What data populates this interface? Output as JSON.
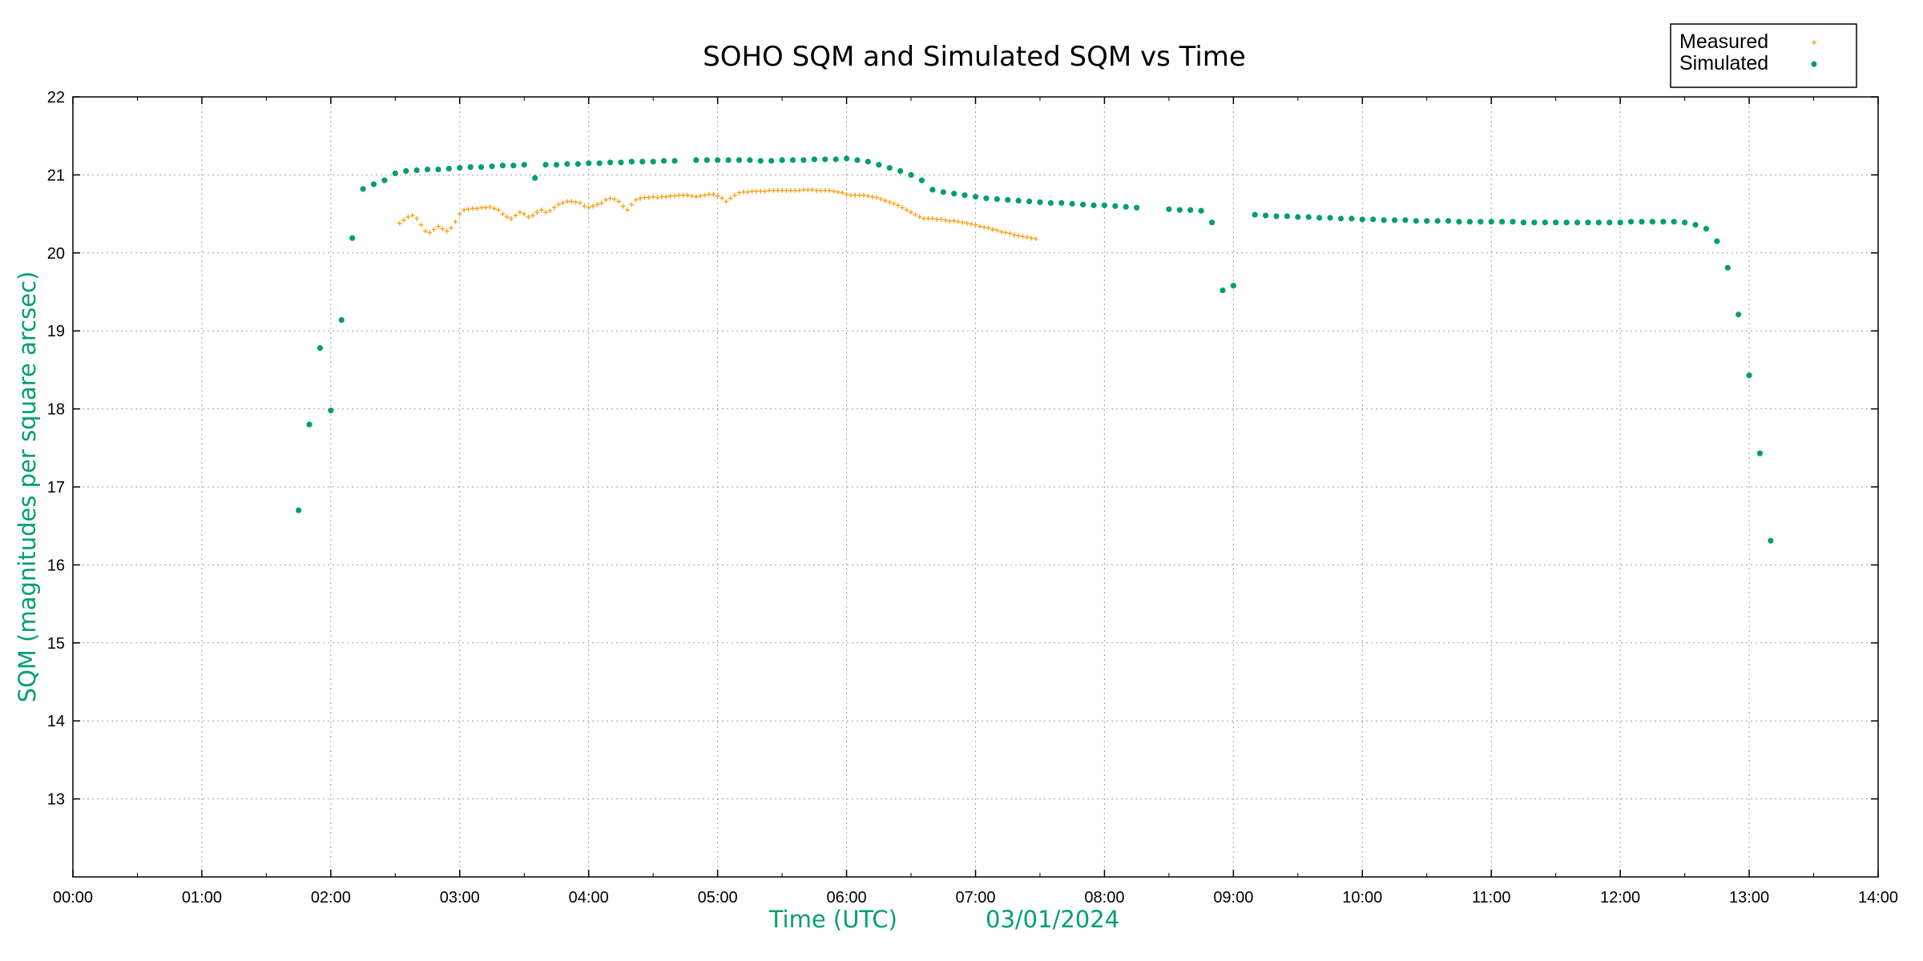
{
  "chart_data": {
    "type": "scatter",
    "title": "SOHO SQM and Simulated SQM vs Time",
    "xlabel": "Time (UTC)",
    "xlabel_date": "03/01/2024",
    "ylabel": "SQM (magnitudes per square arcsec)",
    "xlim": [
      "00:00",
      "14:00"
    ],
    "ylim": [
      12,
      22
    ],
    "x_ticks": [
      "00:00",
      "01:00",
      "02:00",
      "03:00",
      "04:00",
      "05:00",
      "06:00",
      "07:00",
      "08:00",
      "09:00",
      "10:00",
      "11:00",
      "12:00",
      "13:00",
      "14:00"
    ],
    "y_ticks": [
      "13",
      "14",
      "15",
      "16",
      "17",
      "18",
      "19",
      "20",
      "21",
      "22"
    ],
    "grid": true,
    "legend_position": "top-right",
    "label_color": "#009e73",
    "series": [
      {
        "name": "Measured",
        "color": "#f5a623",
        "marker": "plus",
        "points": [
          [
            "02:32",
            20.38
          ],
          [
            "02:34",
            20.42
          ],
          [
            "02:36",
            20.46
          ],
          [
            "02:38",
            20.48
          ],
          [
            "02:40",
            20.44
          ],
          [
            "02:42",
            20.36
          ],
          [
            "02:44",
            20.28
          ],
          [
            "02:46",
            20.26
          ],
          [
            "02:48",
            20.3
          ],
          [
            "02:50",
            20.34
          ],
          [
            "02:52",
            20.31
          ],
          [
            "02:54",
            20.28
          ],
          [
            "02:56",
            20.32
          ],
          [
            "02:58",
            20.4
          ],
          [
            "03:00",
            20.5
          ],
          [
            "03:02",
            20.55
          ],
          [
            "03:04",
            20.56
          ],
          [
            "03:06",
            20.57
          ],
          [
            "03:08",
            20.57
          ],
          [
            "03:10",
            20.58
          ],
          [
            "03:12",
            20.58
          ],
          [
            "03:14",
            20.59
          ],
          [
            "03:16",
            20.57
          ],
          [
            "03:18",
            20.55
          ],
          [
            "03:20",
            20.5
          ],
          [
            "03:22",
            20.46
          ],
          [
            "03:24",
            20.44
          ],
          [
            "03:26",
            20.48
          ],
          [
            "03:28",
            20.52
          ],
          [
            "03:30",
            20.5
          ],
          [
            "03:32",
            20.46
          ],
          [
            "03:34",
            20.48
          ],
          [
            "03:36",
            20.52
          ],
          [
            "03:38",
            20.55
          ],
          [
            "03:40",
            20.52
          ],
          [
            "03:42",
            20.54
          ],
          [
            "03:44",
            20.58
          ],
          [
            "03:46",
            20.62
          ],
          [
            "03:48",
            20.64
          ],
          [
            "03:50",
            20.66
          ],
          [
            "03:52",
            20.66
          ],
          [
            "03:54",
            20.65
          ],
          [
            "03:56",
            20.64
          ],
          [
            "03:58",
            20.6
          ],
          [
            "04:00",
            20.58
          ],
          [
            "04:02",
            20.6
          ],
          [
            "04:04",
            20.62
          ],
          [
            "04:06",
            20.64
          ],
          [
            "04:08",
            20.68
          ],
          [
            "04:10",
            20.7
          ],
          [
            "04:12",
            20.69
          ],
          [
            "04:14",
            20.66
          ],
          [
            "04:16",
            20.6
          ],
          [
            "04:18",
            20.55
          ],
          [
            "04:20",
            20.62
          ],
          [
            "04:22",
            20.68
          ],
          [
            "04:24",
            20.7
          ],
          [
            "04:26",
            20.71
          ],
          [
            "04:28",
            20.71
          ],
          [
            "04:30",
            20.72
          ],
          [
            "04:32",
            20.71
          ],
          [
            "04:34",
            20.72
          ],
          [
            "04:36",
            20.72
          ],
          [
            "04:38",
            20.73
          ],
          [
            "04:40",
            20.73
          ],
          [
            "04:42",
            20.74
          ],
          [
            "04:44",
            20.74
          ],
          [
            "04:46",
            20.74
          ],
          [
            "04:48",
            20.73
          ],
          [
            "04:50",
            20.72
          ],
          [
            "04:52",
            20.73
          ],
          [
            "04:54",
            20.74
          ],
          [
            "04:56",
            20.75
          ],
          [
            "04:58",
            20.75
          ],
          [
            "05:00",
            20.73
          ],
          [
            "05:02",
            20.7
          ],
          [
            "05:04",
            20.66
          ],
          [
            "05:06",
            20.7
          ],
          [
            "05:08",
            20.74
          ],
          [
            "05:10",
            20.77
          ],
          [
            "05:12",
            20.78
          ],
          [
            "05:14",
            20.78
          ],
          [
            "05:16",
            20.79
          ],
          [
            "05:18",
            20.79
          ],
          [
            "05:20",
            20.79
          ],
          [
            "05:22",
            20.79
          ],
          [
            "05:24",
            20.8
          ],
          [
            "05:26",
            20.8
          ],
          [
            "05:28",
            20.8
          ],
          [
            "05:30",
            20.8
          ],
          [
            "05:32",
            20.8
          ],
          [
            "05:34",
            20.8
          ],
          [
            "05:36",
            20.8
          ],
          [
            "05:38",
            20.8
          ],
          [
            "05:40",
            20.81
          ],
          [
            "05:42",
            20.81
          ],
          [
            "05:44",
            20.81
          ],
          [
            "05:46",
            20.8
          ],
          [
            "05:48",
            20.8
          ],
          [
            "05:50",
            20.8
          ],
          [
            "05:52",
            20.8
          ],
          [
            "05:54",
            20.79
          ],
          [
            "05:56",
            20.78
          ],
          [
            "05:58",
            20.77
          ],
          [
            "06:00",
            20.75
          ],
          [
            "06:02",
            20.74
          ],
          [
            "06:04",
            20.74
          ],
          [
            "06:06",
            20.74
          ],
          [
            "06:08",
            20.74
          ],
          [
            "06:10",
            20.73
          ],
          [
            "06:12",
            20.72
          ],
          [
            "06:14",
            20.71
          ],
          [
            "06:16",
            20.69
          ],
          [
            "06:18",
            20.67
          ],
          [
            "06:20",
            20.65
          ],
          [
            "06:22",
            20.63
          ],
          [
            "06:24",
            20.61
          ],
          [
            "06:26",
            20.58
          ],
          [
            "06:28",
            20.55
          ],
          [
            "06:30",
            20.52
          ],
          [
            "06:32",
            20.49
          ],
          [
            "06:34",
            20.46
          ],
          [
            "06:36",
            20.44
          ],
          [
            "06:38",
            20.44
          ],
          [
            "06:40",
            20.44
          ],
          [
            "06:42",
            20.43
          ],
          [
            "06:44",
            20.43
          ],
          [
            "06:46",
            20.42
          ],
          [
            "06:48",
            20.41
          ],
          [
            "06:50",
            20.41
          ],
          [
            "06:52",
            20.4
          ],
          [
            "06:54",
            20.39
          ],
          [
            "06:56",
            20.38
          ],
          [
            "06:58",
            20.37
          ],
          [
            "07:00",
            20.36
          ],
          [
            "07:02",
            20.34
          ],
          [
            "07:04",
            20.33
          ],
          [
            "07:06",
            20.32
          ],
          [
            "07:08",
            20.3
          ],
          [
            "07:10",
            20.29
          ],
          [
            "07:12",
            20.27
          ],
          [
            "07:14",
            20.26
          ],
          [
            "07:16",
            20.25
          ],
          [
            "07:18",
            20.23
          ],
          [
            "07:20",
            20.22
          ],
          [
            "07:22",
            20.21
          ],
          [
            "07:24",
            20.2
          ],
          [
            "07:26",
            20.19
          ],
          [
            "07:28",
            20.18
          ]
        ]
      },
      {
        "name": "Simulated",
        "color": "#009e73",
        "marker": "dot",
        "points": [
          [
            "01:45",
            16.7
          ],
          [
            "01:50",
            17.8
          ],
          [
            "01:55",
            18.78
          ],
          [
            "02:00",
            17.98
          ],
          [
            "02:05",
            19.14
          ],
          [
            "02:10",
            20.19
          ],
          [
            "02:15",
            20.82
          ],
          [
            "02:20",
            20.88
          ],
          [
            "02:25",
            20.93
          ],
          [
            "02:30",
            21.02
          ],
          [
            "02:35",
            21.05
          ],
          [
            "02:40",
            21.06
          ],
          [
            "02:45",
            21.07
          ],
          [
            "02:50",
            21.07
          ],
          [
            "02:55",
            21.08
          ],
          [
            "03:00",
            21.09
          ],
          [
            "03:05",
            21.1
          ],
          [
            "03:10",
            21.1
          ],
          [
            "03:15",
            21.11
          ],
          [
            "03:20",
            21.12
          ],
          [
            "03:25",
            21.12
          ],
          [
            "03:30",
            21.13
          ],
          [
            "03:35",
            20.96
          ],
          [
            "03:40",
            21.13
          ],
          [
            "03:45",
            21.13
          ],
          [
            "03:50",
            21.14
          ],
          [
            "03:55",
            21.14
          ],
          [
            "04:00",
            21.15
          ],
          [
            "04:05",
            21.15
          ],
          [
            "04:10",
            21.16
          ],
          [
            "04:15",
            21.16
          ],
          [
            "04:20",
            21.17
          ],
          [
            "04:25",
            21.17
          ],
          [
            "04:30",
            21.17
          ],
          [
            "04:35",
            21.18
          ],
          [
            "04:40",
            21.18
          ],
          [
            "04:50",
            21.19
          ],
          [
            "04:55",
            21.19
          ],
          [
            "05:00",
            21.19
          ],
          [
            "05:05",
            21.19
          ],
          [
            "05:10",
            21.19
          ],
          [
            "05:15",
            21.19
          ],
          [
            "05:20",
            21.18
          ],
          [
            "05:25",
            21.18
          ],
          [
            "05:30",
            21.19
          ],
          [
            "05:35",
            21.19
          ],
          [
            "05:40",
            21.19
          ],
          [
            "05:45",
            21.2
          ],
          [
            "05:50",
            21.2
          ],
          [
            "05:55",
            21.2
          ],
          [
            "06:00",
            21.21
          ],
          [
            "06:05",
            21.19
          ],
          [
            "06:10",
            21.17
          ],
          [
            "06:15",
            21.13
          ],
          [
            "06:20",
            21.09
          ],
          [
            "06:25",
            21.05
          ],
          [
            "06:30",
            21.0
          ],
          [
            "06:35",
            20.93
          ],
          [
            "06:40",
            20.81
          ],
          [
            "06:45",
            20.78
          ],
          [
            "06:50",
            20.76
          ],
          [
            "06:55",
            20.74
          ],
          [
            "07:00",
            20.72
          ],
          [
            "07:05",
            20.7
          ],
          [
            "07:10",
            20.69
          ],
          [
            "07:15",
            20.68
          ],
          [
            "07:20",
            20.67
          ],
          [
            "07:25",
            20.66
          ],
          [
            "07:30",
            20.65
          ],
          [
            "07:35",
            20.64
          ],
          [
            "07:40",
            20.64
          ],
          [
            "07:45",
            20.63
          ],
          [
            "07:50",
            20.62
          ],
          [
            "07:55",
            20.61
          ],
          [
            "08:00",
            20.61
          ],
          [
            "08:05",
            20.6
          ],
          [
            "08:10",
            20.59
          ],
          [
            "08:15",
            20.58
          ],
          [
            "08:30",
            20.56
          ],
          [
            "08:35",
            20.55
          ],
          [
            "08:40",
            20.55
          ],
          [
            "08:45",
            20.54
          ],
          [
            "08:50",
            20.39
          ],
          [
            "08:55",
            19.52
          ],
          [
            "09:00",
            19.58
          ],
          [
            "09:10",
            20.49
          ],
          [
            "09:15",
            20.48
          ],
          [
            "09:20",
            20.47
          ],
          [
            "09:25",
            20.47
          ],
          [
            "09:30",
            20.46
          ],
          [
            "09:35",
            20.46
          ],
          [
            "09:40",
            20.45
          ],
          [
            "09:45",
            20.45
          ],
          [
            "09:50",
            20.44
          ],
          [
            "09:55",
            20.44
          ],
          [
            "10:00",
            20.43
          ],
          [
            "10:05",
            20.43
          ],
          [
            "10:10",
            20.42
          ],
          [
            "10:15",
            20.42
          ],
          [
            "10:20",
            20.42
          ],
          [
            "10:25",
            20.41
          ],
          [
            "10:30",
            20.41
          ],
          [
            "10:35",
            20.41
          ],
          [
            "10:40",
            20.41
          ],
          [
            "10:45",
            20.4
          ],
          [
            "10:50",
            20.4
          ],
          [
            "10:55",
            20.4
          ],
          [
            "11:00",
            20.4
          ],
          [
            "11:05",
            20.4
          ],
          [
            "11:10",
            20.4
          ],
          [
            "11:15",
            20.39
          ],
          [
            "11:20",
            20.39
          ],
          [
            "11:25",
            20.39
          ],
          [
            "11:30",
            20.39
          ],
          [
            "11:35",
            20.39
          ],
          [
            "11:40",
            20.39
          ],
          [
            "11:45",
            20.39
          ],
          [
            "11:50",
            20.39
          ],
          [
            "11:55",
            20.39
          ],
          [
            "12:00",
            20.39
          ],
          [
            "12:05",
            20.4
          ],
          [
            "12:10",
            20.4
          ],
          [
            "12:15",
            20.4
          ],
          [
            "12:20",
            20.4
          ],
          [
            "12:25",
            20.4
          ],
          [
            "12:30",
            20.39
          ],
          [
            "12:35",
            20.36
          ],
          [
            "12:40",
            20.31
          ],
          [
            "12:45",
            20.15
          ],
          [
            "12:50",
            19.81
          ],
          [
            "12:55",
            19.21
          ],
          [
            "13:00",
            18.43
          ],
          [
            "13:05",
            17.43
          ],
          [
            "13:10",
            16.31
          ]
        ]
      }
    ]
  }
}
